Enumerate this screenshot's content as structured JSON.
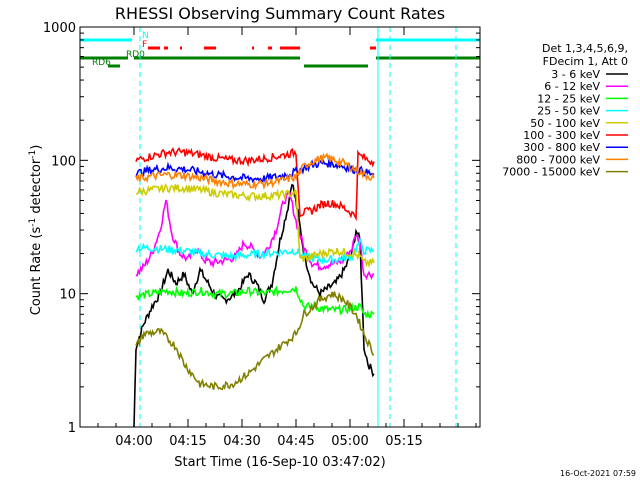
{
  "chart_data": {
    "type": "line",
    "title": "RHESSI Observing Summary Count Rates",
    "xlabel": "Start Time (16-Sep-10 03:47:02)",
    "ylabel_main": "Count Rate (s",
    "ylabel_sup1": "-1",
    "ylabel_mid": " detector",
    "ylabel_sup2": "-1",
    "ylabel_end": ")",
    "yscale": "log",
    "ylim": [
      1,
      1000
    ],
    "xlim": [
      0,
      1.0
    ],
    "x_tick_labels": [
      {
        "label": "04:00",
        "x": 0.135
      },
      {
        "label": "04:15",
        "x": 0.27
      },
      {
        "label": "04:30",
        "x": 0.405
      },
      {
        "label": "04:45",
        "x": 0.54
      },
      {
        "label": "05:00",
        "x": 0.675
      },
      {
        "label": "05:15",
        "x": 0.81
      }
    ],
    "y_tick_labels": [
      {
        "label": "1",
        "value": 1
      },
      {
        "label": "10",
        "value": 10
      },
      {
        "label": "100",
        "value": 100
      },
      {
        "label": "1000",
        "value": 1000
      }
    ],
    "legend_header": [
      "Det 1,3,4,5,6,9,",
      "FDecim 1, Att 0"
    ],
    "legend_placement": "right",
    "series": [
      {
        "name": "3 - 6 keV",
        "color": "#000000",
        "points": [
          [
            0.135,
            1.0
          ],
          [
            0.14,
            4.0
          ],
          [
            0.16,
            6.0
          ],
          [
            0.18,
            8.0
          ],
          [
            0.2,
            10.0
          ],
          [
            0.22,
            15.0
          ],
          [
            0.24,
            12.0
          ],
          [
            0.26,
            14.0
          ],
          [
            0.28,
            10.0
          ],
          [
            0.3,
            15.0
          ],
          [
            0.32,
            12.0
          ],
          [
            0.34,
            9.5
          ],
          [
            0.36,
            9.0
          ],
          [
            0.38,
            9.5
          ],
          [
            0.4,
            11.0
          ],
          [
            0.42,
            14.0
          ],
          [
            0.44,
            12.0
          ],
          [
            0.46,
            9.0
          ],
          [
            0.48,
            12.0
          ],
          [
            0.5,
            25.0
          ],
          [
            0.52,
            45.0
          ],
          [
            0.53,
            70.0
          ],
          [
            0.545,
            40.0
          ],
          [
            0.56,
            20.0
          ],
          [
            0.58,
            12.0
          ],
          [
            0.6,
            10.0
          ],
          [
            0.62,
            11.0
          ],
          [
            0.64,
            12.0
          ],
          [
            0.66,
            15.0
          ],
          [
            0.68,
            20.0
          ],
          [
            0.69,
            30.0
          ],
          [
            0.7,
            25.0
          ],
          [
            0.71,
            4.0
          ],
          [
            0.72,
            3.0
          ],
          [
            0.735,
            2.5
          ]
        ]
      },
      {
        "name": "6 - 12 keV",
        "color": "#ff00ff",
        "points": [
          [
            0.14,
            14.0
          ],
          [
            0.16,
            16.0
          ],
          [
            0.18,
            20.0
          ],
          [
            0.2,
            30.0
          ],
          [
            0.215,
            50.0
          ],
          [
            0.23,
            28.0
          ],
          [
            0.25,
            20.0
          ],
          [
            0.27,
            18.0
          ],
          [
            0.29,
            22.0
          ],
          [
            0.31,
            18.0
          ],
          [
            0.33,
            17.0
          ],
          [
            0.35,
            17.5
          ],
          [
            0.37,
            18.0
          ],
          [
            0.39,
            19.0
          ],
          [
            0.41,
            24.0
          ],
          [
            0.43,
            22.0
          ],
          [
            0.45,
            19.0
          ],
          [
            0.47,
            22.0
          ],
          [
            0.49,
            30.0
          ],
          [
            0.51,
            50.0
          ],
          [
            0.525,
            55.0
          ],
          [
            0.54,
            35.0
          ],
          [
            0.56,
            22.0
          ],
          [
            0.58,
            17.0
          ],
          [
            0.6,
            16.0
          ],
          [
            0.62,
            16.5
          ],
          [
            0.64,
            17.0
          ],
          [
            0.66,
            18.0
          ],
          [
            0.68,
            22.0
          ],
          [
            0.69,
            28.0
          ],
          [
            0.7,
            24.0
          ],
          [
            0.71,
            14.0
          ],
          [
            0.735,
            14.0
          ]
        ]
      },
      {
        "name": "12 - 25 keV",
        "color": "#00ff00",
        "points": [
          [
            0.14,
            9.5
          ],
          [
            0.18,
            10.0
          ],
          [
            0.22,
            10.5
          ],
          [
            0.26,
            10.0
          ],
          [
            0.3,
            10.5
          ],
          [
            0.34,
            10.0
          ],
          [
            0.38,
            10.0
          ],
          [
            0.42,
            10.5
          ],
          [
            0.46,
            10.0
          ],
          [
            0.5,
            10.5
          ],
          [
            0.54,
            11.0
          ],
          [
            0.56,
            8.0
          ],
          [
            0.58,
            8.0
          ],
          [
            0.6,
            7.8
          ],
          [
            0.62,
            7.6
          ],
          [
            0.64,
            7.5
          ],
          [
            0.66,
            7.6
          ],
          [
            0.68,
            7.8
          ],
          [
            0.7,
            8.0
          ],
          [
            0.71,
            7.0
          ],
          [
            0.735,
            7.0
          ]
        ]
      },
      {
        "name": "25 - 50 keV",
        "color": "#00ffff",
        "points": [
          [
            0.14,
            22.0
          ],
          [
            0.18,
            22.0
          ],
          [
            0.22,
            21.5
          ],
          [
            0.26,
            21.0
          ],
          [
            0.3,
            20.0
          ],
          [
            0.34,
            19.5
          ],
          [
            0.38,
            19.0
          ],
          [
            0.42,
            19.5
          ],
          [
            0.46,
            20.0
          ],
          [
            0.5,
            20.5
          ],
          [
            0.54,
            21.0
          ],
          [
            0.56,
            19.0
          ],
          [
            0.58,
            18.5
          ],
          [
            0.6,
            18.0
          ],
          [
            0.62,
            18.0
          ],
          [
            0.64,
            18.0
          ],
          [
            0.66,
            18.5
          ],
          [
            0.68,
            19.0
          ],
          [
            0.69,
            22.0
          ],
          [
            0.7,
            24.0
          ],
          [
            0.71,
            21.0
          ],
          [
            0.735,
            21.0
          ]
        ]
      },
      {
        "name": "50 - 100 keV",
        "color": "#cccc00",
        "points": [
          [
            0.14,
            58.0
          ],
          [
            0.18,
            60.0
          ],
          [
            0.22,
            62.0
          ],
          [
            0.26,
            62.0
          ],
          [
            0.3,
            60.0
          ],
          [
            0.34,
            57.0
          ],
          [
            0.38,
            55.0
          ],
          [
            0.42,
            54.0
          ],
          [
            0.46,
            54.0
          ],
          [
            0.5,
            55.0
          ],
          [
            0.54,
            57.0
          ],
          [
            0.55,
            18.0
          ],
          [
            0.58,
            19.0
          ],
          [
            0.6,
            20.0
          ],
          [
            0.62,
            20.5
          ],
          [
            0.64,
            21.0
          ],
          [
            0.66,
            20.5
          ],
          [
            0.68,
            20.0
          ],
          [
            0.7,
            19.0
          ],
          [
            0.71,
            17.0
          ],
          [
            0.735,
            17.0
          ]
        ]
      },
      {
        "name": "100 - 300 keV",
        "color": "#ff0000",
        "points": [
          [
            0.14,
            100.0
          ],
          [
            0.18,
            108.0
          ],
          [
            0.22,
            115.0
          ],
          [
            0.26,
            115.0
          ],
          [
            0.3,
            110.0
          ],
          [
            0.34,
            104.0
          ],
          [
            0.38,
            100.0
          ],
          [
            0.42,
            100.0
          ],
          [
            0.46,
            103.0
          ],
          [
            0.5,
            108.0
          ],
          [
            0.54,
            115.0
          ],
          [
            0.55,
            40.0
          ],
          [
            0.58,
            42.0
          ],
          [
            0.6,
            46.0
          ],
          [
            0.62,
            48.0
          ],
          [
            0.64,
            47.0
          ],
          [
            0.66,
            44.0
          ],
          [
            0.68,
            40.0
          ],
          [
            0.69,
            38.0
          ],
          [
            0.695,
            110.0
          ],
          [
            0.71,
            105.0
          ],
          [
            0.72,
            100.0
          ],
          [
            0.735,
            98.0
          ]
        ]
      },
      {
        "name": "300 - 800 keV",
        "color": "#0000ff",
        "points": [
          [
            0.14,
            80.0
          ],
          [
            0.18,
            85.0
          ],
          [
            0.22,
            88.0
          ],
          [
            0.26,
            86.0
          ],
          [
            0.3,
            82.0
          ],
          [
            0.34,
            78.0
          ],
          [
            0.38,
            75.0
          ],
          [
            0.42,
            73.0
          ],
          [
            0.46,
            73.0
          ],
          [
            0.5,
            76.0
          ],
          [
            0.54,
            82.0
          ],
          [
            0.56,
            88.0
          ],
          [
            0.58,
            92.0
          ],
          [
            0.6,
            95.0
          ],
          [
            0.62,
            95.0
          ],
          [
            0.64,
            93.0
          ],
          [
            0.66,
            90.0
          ],
          [
            0.68,
            86.0
          ],
          [
            0.7,
            84.0
          ],
          [
            0.71,
            82.0
          ],
          [
            0.735,
            78.0
          ]
        ]
      },
      {
        "name": "800 - 7000 keV",
        "color": "#ff8000",
        "points": [
          [
            0.14,
            72.0
          ],
          [
            0.18,
            76.0
          ],
          [
            0.22,
            78.0
          ],
          [
            0.26,
            77.0
          ],
          [
            0.3,
            74.0
          ],
          [
            0.34,
            70.0
          ],
          [
            0.38,
            67.0
          ],
          [
            0.42,
            66.0
          ],
          [
            0.46,
            67.0
          ],
          [
            0.5,
            70.0
          ],
          [
            0.54,
            75.0
          ],
          [
            0.56,
            90.0
          ],
          [
            0.58,
            98.0
          ],
          [
            0.6,
            103.0
          ],
          [
            0.62,
            104.0
          ],
          [
            0.64,
            100.0
          ],
          [
            0.66,
            95.0
          ],
          [
            0.68,
            88.0
          ],
          [
            0.7,
            82.0
          ],
          [
            0.71,
            78.0
          ],
          [
            0.735,
            74.0
          ]
        ]
      },
      {
        "name": "7000 - 15000 keV",
        "color": "#808000",
        "points": [
          [
            0.14,
            4.0
          ],
          [
            0.16,
            5.0
          ],
          [
            0.2,
            5.2
          ],
          [
            0.24,
            4.0
          ],
          [
            0.26,
            3.0
          ],
          [
            0.28,
            2.5
          ],
          [
            0.3,
            2.1
          ],
          [
            0.34,
            2.0
          ],
          [
            0.38,
            2.1
          ],
          [
            0.42,
            2.5
          ],
          [
            0.46,
            3.2
          ],
          [
            0.5,
            4.0
          ],
          [
            0.54,
            5.0
          ],
          [
            0.56,
            7.0
          ],
          [
            0.6,
            9.0
          ],
          [
            0.63,
            10.0
          ],
          [
            0.66,
            9.0
          ],
          [
            0.69,
            7.0
          ],
          [
            0.71,
            5.0
          ],
          [
            0.735,
            3.5
          ]
        ]
      }
    ],
    "flag_bars": [
      {
        "label": "N",
        "color": "#00ffff",
        "segments": [
          [
            0.0,
            0.13
          ],
          [
            0.74,
            1.0
          ]
        ]
      },
      {
        "label": "F",
        "color": "#ff0000",
        "segments": [
          [
            0.17,
            0.2
          ],
          [
            0.21,
            0.22
          ],
          [
            0.25,
            0.255
          ],
          [
            0.31,
            0.34
          ],
          [
            0.43,
            0.435
          ],
          [
            0.47,
            0.48
          ],
          [
            0.5,
            0.55
          ],
          [
            0.725,
            0.74
          ]
        ]
      },
      {
        "label": "RD0",
        "color": "#008000",
        "segments": [
          [
            0.0,
            0.12
          ],
          [
            0.135,
            0.55
          ],
          [
            0.74,
            1.0
          ]
        ]
      },
      {
        "label": "RD6",
        "color": "#008000",
        "segments": [
          [
            0.07,
            0.1
          ],
          [
            0.56,
            0.72
          ]
        ]
      }
    ],
    "vertical_lines": [
      {
        "x": 0.15,
        "color": "#00ffff",
        "style": "dashed"
      },
      {
        "x": 0.745,
        "color": "#00ffff",
        "style": "solid"
      },
      {
        "x": 0.775,
        "color": "#00ffff",
        "style": "dashed"
      },
      {
        "x": 0.94,
        "color": "#00ffff",
        "style": "dashed"
      }
    ],
    "timestamp": "16-Oct-2021 07:59"
  }
}
